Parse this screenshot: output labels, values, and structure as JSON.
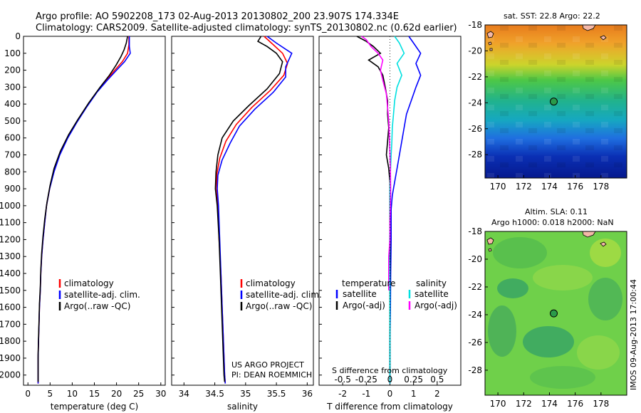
{
  "title": {
    "line1": "Argo profile: AO 5902208_173 02-Aug-2013 20130802_200 23.907S 174.334E",
    "line2": "Climatology: CARS2009. Satellite-adjusted climatology: synTS_20130802.nc (0.62d earlier)"
  },
  "credit": "IMOS 09-Aug-2013 17:00:44",
  "colors": {
    "red": "#ff0000",
    "blue": "#0000ff",
    "black": "#000000",
    "cyan": "#00e0e0",
    "magenta": "#ff00ff"
  },
  "chart_data": [
    {
      "type": "line",
      "panel": "temperature",
      "xlabel": "temperature (deg C)",
      "xlim": [
        -1,
        31
      ],
      "xticks": [
        0,
        5,
        10,
        15,
        20,
        25,
        30
      ],
      "ylim": [
        2060,
        0
      ],
      "yticks": [
        0,
        100,
        200,
        300,
        400,
        500,
        600,
        700,
        800,
        900,
        1000,
        1100,
        1200,
        1300,
        1400,
        1500,
        1600,
        1700,
        1800,
        1900,
        2000
      ],
      "legend": [
        "climatology",
        "satellite-adj. clim.",
        "Argo(..raw -QC)"
      ],
      "series": [
        {
          "name": "climatology",
          "color": "red",
          "points": [
            [
              22.8,
              0
            ],
            [
              22.8,
              50
            ],
            [
              22.5,
              100
            ],
            [
              21.3,
              150
            ],
            [
              19.6,
              200
            ],
            [
              17.7,
              260
            ],
            [
              15.5,
              330
            ],
            [
              13.1,
              420
            ],
            [
              10.9,
              510
            ],
            [
              8.9,
              600
            ],
            [
              7.1,
              700
            ],
            [
              5.8,
              800
            ],
            [
              4.9,
              900
            ],
            [
              4.2,
              1000
            ],
            [
              3.8,
              1100
            ],
            [
              3.4,
              1200
            ],
            [
              3.1,
              1300
            ],
            [
              2.9,
              1400
            ],
            [
              2.8,
              1500
            ],
            [
              2.6,
              1600
            ],
            [
              2.5,
              1700
            ],
            [
              2.4,
              1800
            ],
            [
              2.3,
              1900
            ],
            [
              2.3,
              2000
            ],
            [
              2.3,
              2050
            ]
          ]
        },
        {
          "name": "satellite-adj. clim.",
          "color": "blue",
          "points": [
            [
              22.9,
              0
            ],
            [
              22.9,
              60
            ],
            [
              23.1,
              100
            ],
            [
              21.8,
              150
            ],
            [
              20.0,
              200
            ],
            [
              17.9,
              260
            ],
            [
              15.6,
              330
            ],
            [
              13.2,
              420
            ],
            [
              11.0,
              510
            ],
            [
              9.0,
              600
            ],
            [
              7.2,
              700
            ],
            [
              5.9,
              800
            ],
            [
              4.9,
              900
            ],
            [
              4.2,
              1000
            ],
            [
              3.8,
              1100
            ],
            [
              3.4,
              1200
            ],
            [
              3.1,
              1300
            ],
            [
              2.9,
              1400
            ],
            [
              2.8,
              1500
            ],
            [
              2.6,
              1600
            ],
            [
              2.5,
              1700
            ],
            [
              2.4,
              1800
            ],
            [
              2.3,
              1900
            ],
            [
              2.3,
              2000
            ],
            [
              2.3,
              2050
            ]
          ]
        },
        {
          "name": "Argo(..raw -QC)",
          "color": "black",
          "points": [
            [
              22.5,
              0
            ],
            [
              22.2,
              40
            ],
            [
              21.7,
              80
            ],
            [
              21.0,
              120
            ],
            [
              19.9,
              170
            ],
            [
              18.4,
              230
            ],
            [
              16.3,
              300
            ],
            [
              13.8,
              390
            ],
            [
              11.3,
              490
            ],
            [
              9.2,
              580
            ],
            [
              7.3,
              680
            ],
            [
              5.9,
              780
            ],
            [
              5.0,
              880
            ],
            [
              4.3,
              980
            ],
            [
              3.8,
              1080
            ],
            [
              3.4,
              1180
            ],
            [
              3.1,
              1280
            ],
            [
              2.9,
              1380
            ],
            [
              2.8,
              1480
            ],
            [
              2.6,
              1580
            ],
            [
              2.5,
              1680
            ],
            [
              2.4,
              1780
            ],
            [
              2.3,
              1880
            ],
            [
              2.3,
              1980
            ],
            [
              2.3,
              2040
            ]
          ]
        }
      ]
    },
    {
      "type": "line",
      "panel": "salinity",
      "xlabel": "salinity",
      "xlim": [
        33.8,
        36.1
      ],
      "xticks": [
        34,
        34.5,
        35,
        35.5,
        36
      ],
      "ylim": [
        2060,
        0
      ],
      "legend": [
        "climatology",
        "satellite-adj. clim.",
        "Argo(..raw -QC)"
      ],
      "annotation": [
        "US ARGO PROJECT",
        "PI: DEAN ROEMMICH"
      ],
      "series": [
        {
          "name": "climatology",
          "color": "red",
          "points": [
            [
              35.3,
              0
            ],
            [
              35.45,
              50
            ],
            [
              35.6,
              100
            ],
            [
              35.68,
              160
            ],
            [
              35.62,
              230
            ],
            [
              35.4,
              320
            ],
            [
              35.1,
              420
            ],
            [
              34.85,
              520
            ],
            [
              34.68,
              620
            ],
            [
              34.58,
              720
            ],
            [
              34.53,
              820
            ],
            [
              34.53,
              900
            ],
            [
              34.55,
              1000
            ],
            [
              34.57,
              1200
            ],
            [
              34.6,
              1400
            ],
            [
              34.62,
              1600
            ],
            [
              34.64,
              1800
            ],
            [
              34.66,
              2000
            ],
            [
              34.67,
              2050
            ]
          ]
        },
        {
          "name": "satellite-adj. clim.",
          "color": "blue",
          "points": [
            [
              35.35,
              0
            ],
            [
              35.5,
              40
            ],
            [
              35.75,
              100
            ],
            [
              35.65,
              180
            ],
            [
              35.65,
              240
            ],
            [
              35.45,
              330
            ],
            [
              35.15,
              430
            ],
            [
              34.9,
              530
            ],
            [
              34.75,
              630
            ],
            [
              34.62,
              730
            ],
            [
              34.55,
              820
            ],
            [
              34.54,
              900
            ],
            [
              34.56,
              1000
            ],
            [
              34.58,
              1200
            ],
            [
              34.6,
              1400
            ],
            [
              34.62,
              1600
            ],
            [
              34.64,
              1800
            ],
            [
              34.66,
              2000
            ],
            [
              34.67,
              2050
            ]
          ]
        },
        {
          "name": "Argo(..raw -QC)",
          "color": "black",
          "points": [
            [
              35.25,
              0
            ],
            [
              35.2,
              30
            ],
            [
              35.35,
              60
            ],
            [
              35.5,
              100
            ],
            [
              35.6,
              150
            ],
            [
              35.55,
              220
            ],
            [
              35.35,
              310
            ],
            [
              35.05,
              410
            ],
            [
              34.8,
              500
            ],
            [
              34.62,
              600
            ],
            [
              34.55,
              700
            ],
            [
              34.52,
              800
            ],
            [
              34.51,
              900
            ],
            [
              34.54,
              1000
            ],
            [
              34.57,
              1200
            ],
            [
              34.59,
              1400
            ],
            [
              34.61,
              1600
            ],
            [
              34.63,
              1800
            ],
            [
              34.65,
              2000
            ],
            [
              34.66,
              2040
            ]
          ]
        }
      ]
    },
    {
      "type": "line",
      "panel": "difference",
      "xlabel": "T difference from climatology",
      "xlabel2": "S difference from climatology",
      "xlim": [
        -3,
        3
      ],
      "xticks": [
        -2,
        -1,
        0,
        1,
        2
      ],
      "xticks2_labels": [
        "-0.5",
        "-0.25",
        "0",
        "0.25",
        "0.5"
      ],
      "ylim": [
        2060,
        0
      ],
      "legend_headers": [
        "temperature",
        "salinity"
      ],
      "legend": [
        "satellite",
        "Argo(-adj)",
        "satellite",
        "Argo(-adj)"
      ],
      "series": [
        {
          "name": "satellite",
          "group": "temperature",
          "color": "blue",
          "points": [
            [
              0.8,
              0
            ],
            [
              1.0,
              40
            ],
            [
              1.3,
              100
            ],
            [
              1.1,
              160
            ],
            [
              1.3,
              230
            ],
            [
              1.1,
              300
            ],
            [
              0.9,
              380
            ],
            [
              0.7,
              460
            ],
            [
              0.6,
              540
            ],
            [
              0.5,
              620
            ],
            [
              0.4,
              700
            ],
            [
              0.3,
              780
            ],
            [
              0.2,
              860
            ],
            [
              0.1,
              940
            ],
            [
              0.05,
              1020
            ],
            [
              0.05,
              1200
            ],
            [
              0.03,
              1400
            ],
            [
              0.02,
              1600
            ],
            [
              0.0,
              1800
            ],
            [
              0.0,
              2050
            ]
          ]
        },
        {
          "name": "Argo(-adj)",
          "group": "temperature",
          "color": "black",
          "points": [
            [
              -1.4,
              0
            ],
            [
              -1.0,
              30
            ],
            [
              -0.7,
              60
            ],
            [
              -0.4,
              100
            ],
            [
              -0.9,
              140
            ],
            [
              -0.5,
              180
            ],
            [
              -0.3,
              230
            ],
            [
              -0.2,
              300
            ],
            [
              -0.1,
              380
            ],
            [
              -0.1,
              460
            ],
            [
              -0.05,
              540
            ],
            [
              -0.1,
              620
            ],
            [
              -0.15,
              700
            ],
            [
              -0.05,
              780
            ],
            [
              0.0,
              860
            ],
            [
              0.0,
              1000
            ],
            [
              0.0,
              1200
            ],
            [
              0.0,
              1500
            ],
            [
              0.0,
              1800
            ],
            [
              0.0,
              2040
            ]
          ]
        },
        {
          "name": "satellite",
          "group": "salinity",
          "color": "cyan",
          "points": [
            [
              0.2,
              0
            ],
            [
              0.4,
              40
            ],
            [
              0.6,
              100
            ],
            [
              0.3,
              160
            ],
            [
              0.5,
              230
            ],
            [
              0.3,
              300
            ],
            [
              0.2,
              380
            ],
            [
              0.15,
              460
            ],
            [
              0.1,
              540
            ],
            [
              0.08,
              620
            ],
            [
              0.05,
              700
            ],
            [
              0.02,
              800
            ],
            [
              0.0,
              900
            ],
            [
              0.0,
              1100
            ],
            [
              -0.02,
              1300
            ],
            [
              0.0,
              1500
            ],
            [
              0.0,
              1800
            ],
            [
              0.0,
              2050
            ]
          ]
        },
        {
          "name": "Argo(-adj)",
          "group": "salinity",
          "color": "magenta",
          "points": [
            [
              -1.2,
              0
            ],
            [
              -1.0,
              20
            ],
            [
              -0.8,
              60
            ],
            [
              -0.5,
              100
            ],
            [
              -0.3,
              140
            ],
            [
              -0.4,
              200
            ],
            [
              -0.3,
              260
            ],
            [
              -0.15,
              340
            ],
            [
              -0.1,
              420
            ],
            [
              -0.05,
              500
            ],
            [
              -0.02,
              600
            ],
            [
              0.0,
              700
            ],
            [
              0.02,
              800
            ],
            [
              0.03,
              900
            ],
            [
              0.02,
              1000
            ],
            [
              0.0,
              1100
            ],
            [
              0.0,
              1200
            ],
            [
              -0.05,
              1300
            ],
            [
              -0.05,
              1400
            ],
            [
              -0.05,
              1500
            ]
          ]
        }
      ]
    },
    {
      "type": "heatmap",
      "panel": "sst_map",
      "title": "sat. SST: 22.8 Argo: 22.2",
      "xlim": [
        169,
        180
      ],
      "xticks": [
        170,
        172,
        174,
        176,
        178
      ],
      "ylim": [
        -29.8,
        -18
      ],
      "yticks": [
        -18,
        -20,
        -22,
        -24,
        -26,
        -28
      ],
      "marker": {
        "lon": 174.334,
        "lat": -23.907
      }
    },
    {
      "type": "heatmap",
      "panel": "sla_map",
      "title": [
        "Altim. SLA: 0.11",
        "Argo h1000: 0.018 h2000: NaN"
      ],
      "xlim": [
        169,
        180
      ],
      "xticks": [
        170,
        172,
        174,
        176,
        178
      ],
      "ylim": [
        -29.8,
        -18
      ],
      "yticks": [
        -18,
        -20,
        -22,
        -24,
        -26,
        -28
      ],
      "marker": {
        "lon": 174.334,
        "lat": -23.907
      }
    }
  ]
}
